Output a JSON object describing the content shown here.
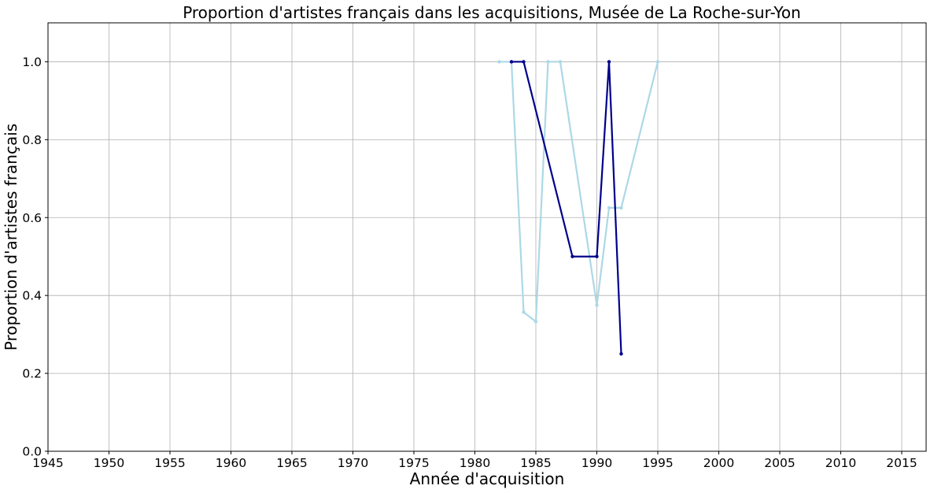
{
  "chart_data": {
    "type": "line",
    "title": "Proportion d'artistes français dans les acquisitions, Musée de La Roche-sur-Yon",
    "xlabel": "Année d'acquisition",
    "ylabel": "Proportion d'artistes français",
    "xlim": [
      1945,
      2017
    ],
    "ylim": [
      0,
      1.1
    ],
    "x_ticks": [
      1945,
      1950,
      1955,
      1960,
      1965,
      1970,
      1975,
      1980,
      1985,
      1990,
      1995,
      2000,
      2005,
      2010,
      2015
    ],
    "y_ticks": [
      0.0,
      0.2,
      0.4,
      0.6,
      0.8,
      1.0
    ],
    "y_tick_labels": [
      "0.0",
      "0.2",
      "0.4",
      "0.6",
      "0.8",
      "1.0"
    ],
    "grid": true,
    "series": [
      {
        "color": "#add8e6",
        "points": [
          [
            1982,
            1.0
          ],
          [
            1983,
            1.0
          ],
          [
            1984,
            0.357
          ],
          [
            1985,
            0.333
          ],
          [
            1986,
            1.0
          ],
          [
            1987,
            1.0
          ],
          [
            1990,
            0.375
          ],
          [
            1991,
            0.625
          ],
          [
            1992,
            0.625
          ],
          [
            1995,
            1.0
          ]
        ]
      },
      {
        "color": "#00008b",
        "points": [
          [
            1983,
            1.0
          ],
          [
            1984,
            1.0
          ],
          [
            1988,
            0.5
          ],
          [
            1990,
            0.5
          ],
          [
            1991,
            1.0
          ],
          [
            1992,
            0.25
          ]
        ]
      }
    ]
  }
}
